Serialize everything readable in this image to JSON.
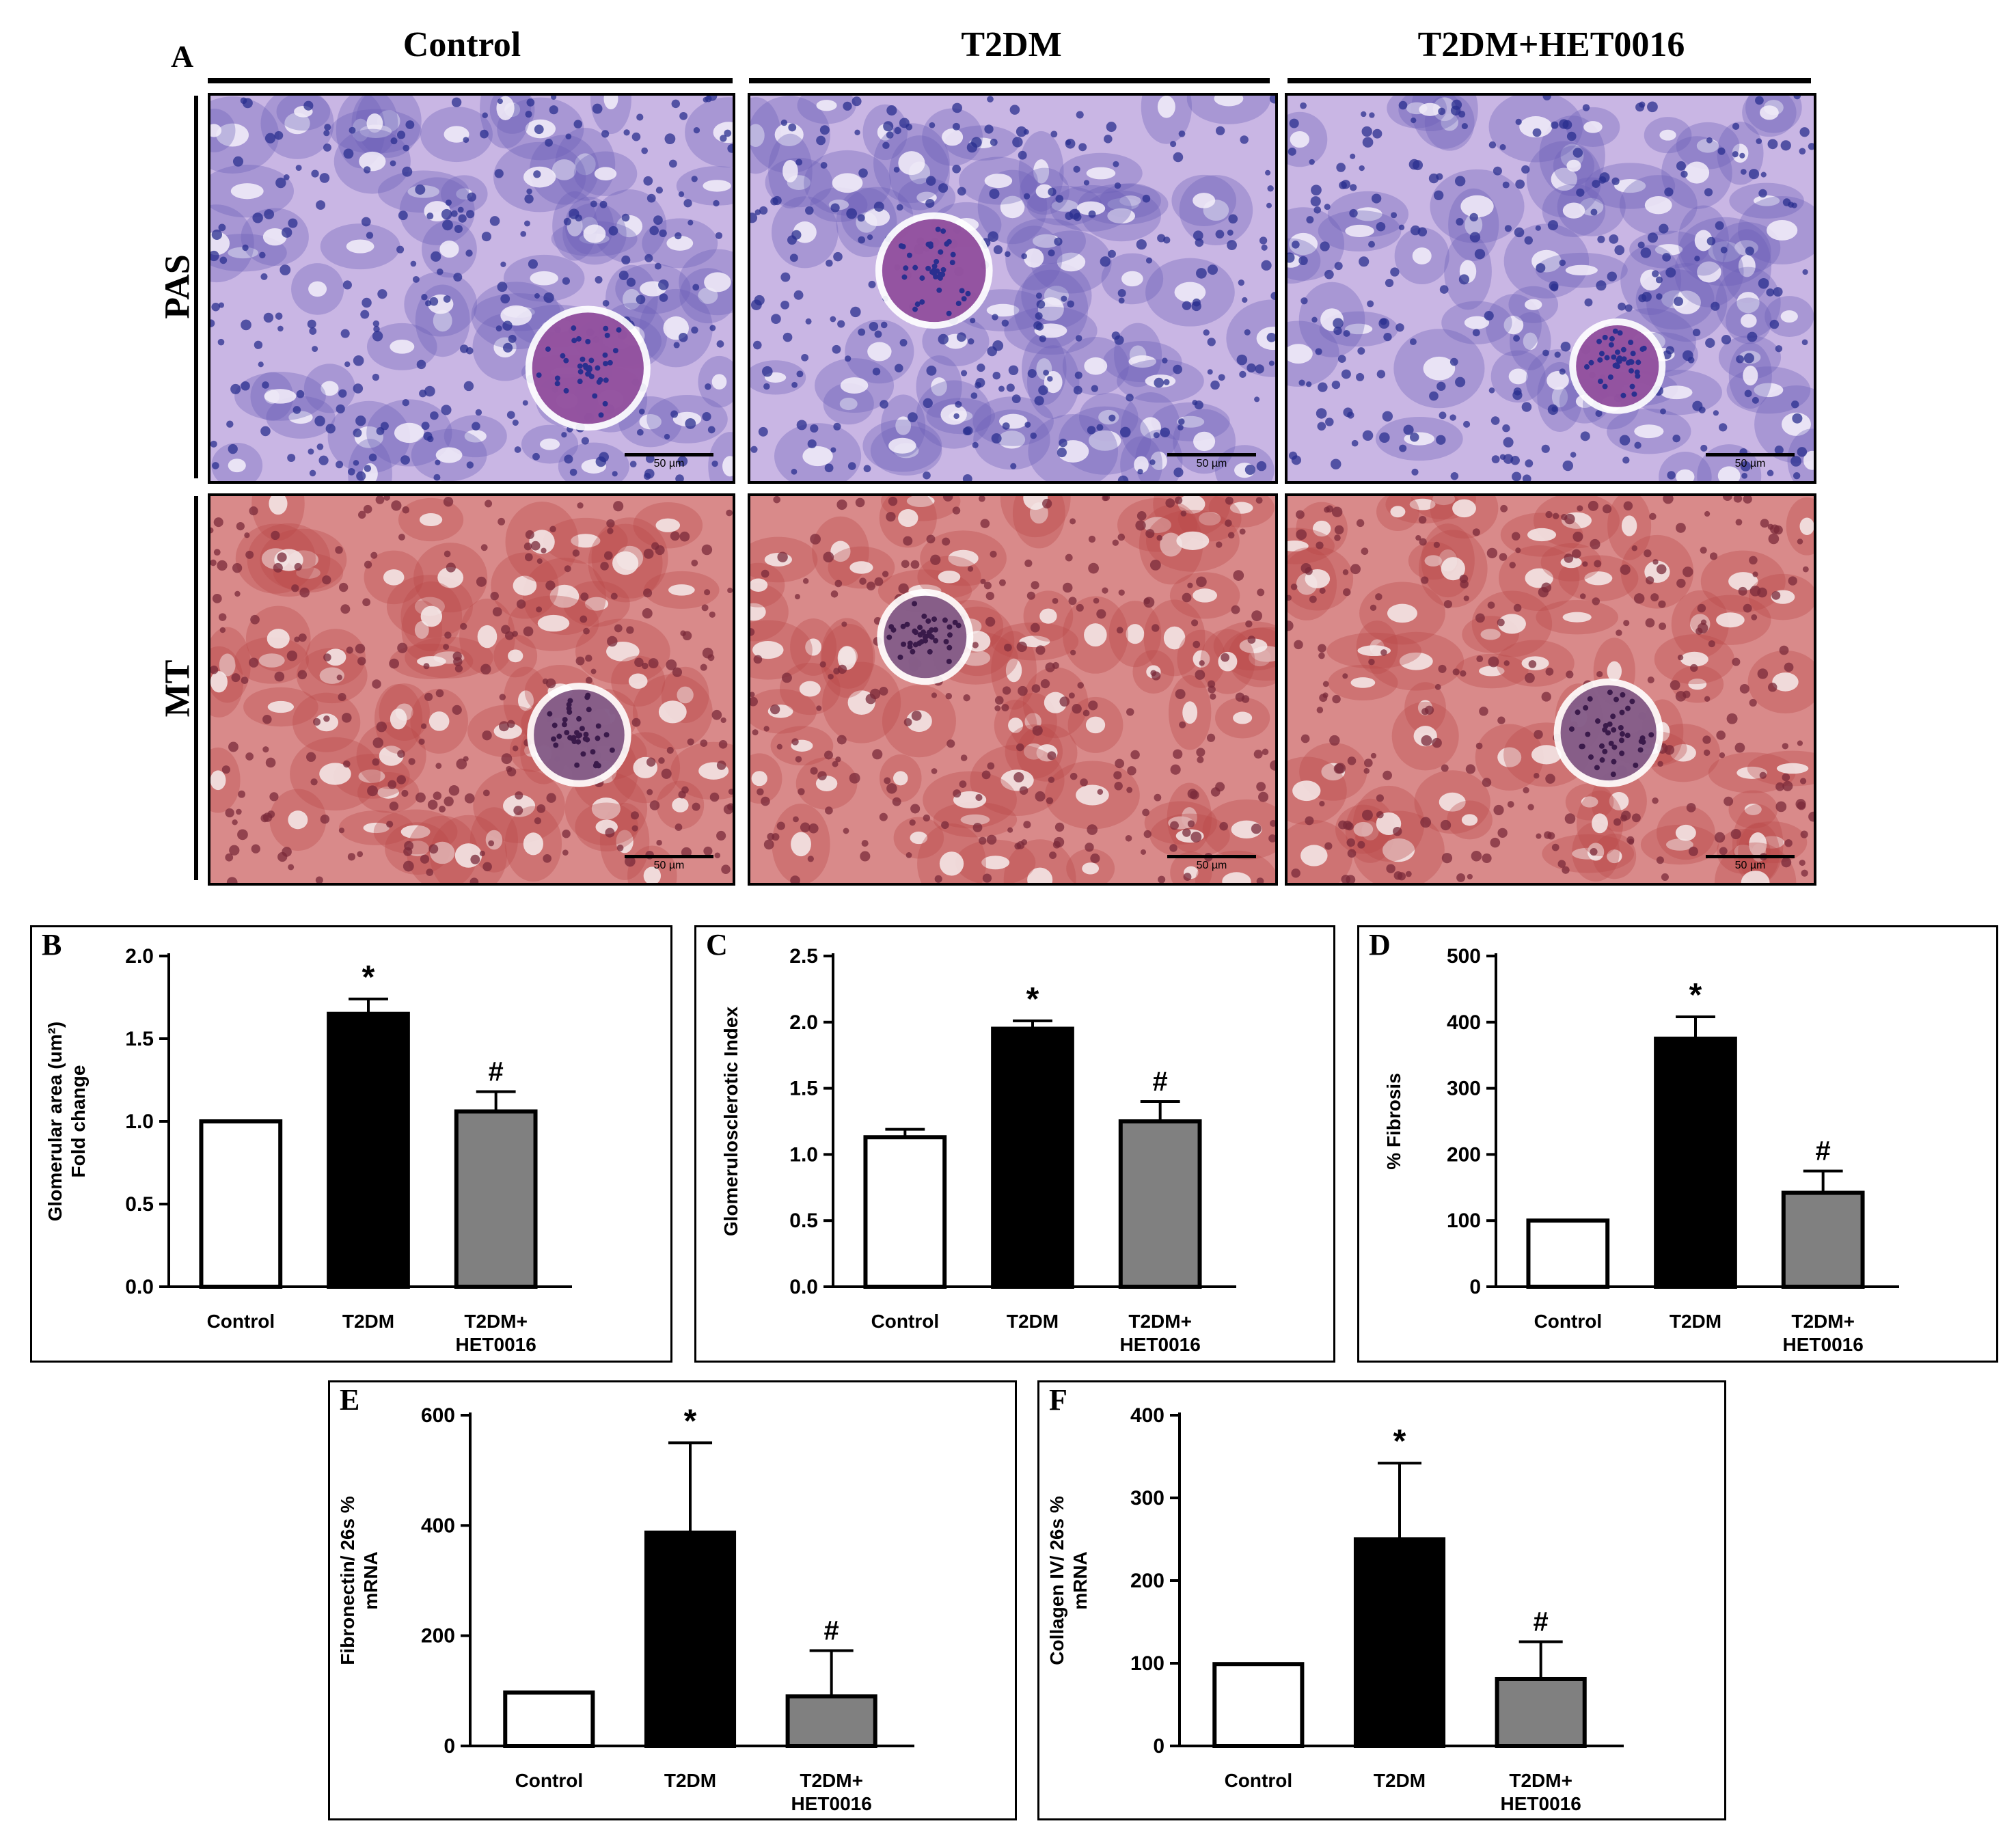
{
  "figure": {
    "panel_a_letter": "A",
    "columns": [
      "Control",
      "T2DM",
      "T2DM+HET0016"
    ],
    "rows": [
      "PAS",
      "MT"
    ],
    "scale_bar_label": "50 µm",
    "stain_colors": {
      "PAS_bg": "#c9b6e4",
      "PAS_cell": "#6a5fb8",
      "PAS_nuc": "#2a2f8f",
      "PAS_glom": "#7a2a8a",
      "MT_bg": "#d98a8a",
      "MT_cell": "#b94848",
      "MT_lumen": "#f6ecec",
      "MT_glom": "#6a3a6e"
    }
  },
  "chart_data": [
    {
      "letter": "B",
      "type": "bar",
      "ylabel": "Glomerular area (um²) Fold change",
      "ylabel_lines": [
        "Glomerular area (um²)",
        "Fold change"
      ],
      "categories": [
        [
          "Control"
        ],
        [
          "T2DM"
        ],
        [
          "T2DM+",
          "HET0016"
        ]
      ],
      "values": [
        1.0,
        1.65,
        1.06
      ],
      "errors": [
        0,
        0.09,
        0.12
      ],
      "annotations": [
        "",
        "*",
        "#"
      ],
      "colors": [
        "#ffffff",
        "#000000",
        "#808080"
      ],
      "ylim": [
        0,
        2.0
      ],
      "ticks": [
        "0.0",
        "0.5",
        "1.0",
        "1.5",
        "2.0"
      ]
    },
    {
      "letter": "C",
      "type": "bar",
      "ylabel": "Glomerulosclerotic Index",
      "ylabel_lines": [
        "Glomerulosclerotic Index"
      ],
      "categories": [
        [
          "Control"
        ],
        [
          "T2DM"
        ],
        [
          "T2DM+",
          "HET0016"
        ]
      ],
      "values": [
        1.13,
        1.95,
        1.25
      ],
      "errors": [
        0.06,
        0.06,
        0.15
      ],
      "annotations": [
        "",
        "*",
        "#"
      ],
      "colors": [
        "#ffffff",
        "#000000",
        "#808080"
      ],
      "ylim": [
        0,
        2.5
      ],
      "ticks": [
        "0.0",
        "0.5",
        "1.0",
        "1.5",
        "2.0",
        "2.5"
      ]
    },
    {
      "letter": "D",
      "type": "bar",
      "ylabel": "% Fibrosis",
      "ylabel_lines": [
        "% Fibrosis"
      ],
      "categories": [
        [
          "Control"
        ],
        [
          "T2DM"
        ],
        [
          "T2DM+",
          "HET0016"
        ]
      ],
      "values": [
        100,
        375,
        142
      ],
      "errors": [
        0,
        33,
        33
      ],
      "annotations": [
        "",
        "*",
        "#"
      ],
      "colors": [
        "#ffffff",
        "#000000",
        "#808080"
      ],
      "ylim": [
        0,
        500
      ],
      "ticks": [
        "0",
        "100",
        "200",
        "300",
        "400",
        "500"
      ]
    },
    {
      "letter": "E",
      "type": "bar",
      "ylabel": "Fibronectin/ 26s % mRNA",
      "ylabel_lines": [
        "Fibronectin/ 26s %",
        "mRNA"
      ],
      "categories": [
        [
          "Control"
        ],
        [
          "T2DM"
        ],
        [
          "T2DM+",
          "HET0016"
        ]
      ],
      "values": [
        97,
        387,
        90
      ],
      "errors": [
        0,
        163,
        83
      ],
      "annotations": [
        "",
        "*",
        "#"
      ],
      "colors": [
        "#ffffff",
        "#000000",
        "#808080"
      ],
      "ylim": [
        0,
        600
      ],
      "ticks": [
        "0",
        "200",
        "400",
        "600"
      ]
    },
    {
      "letter": "F",
      "type": "bar",
      "ylabel": "Collagen IV/ 26s % mRNA",
      "ylabel_lines": [
        "Collagen IV/ 26s %",
        "mRNA"
      ],
      "categories": [
        [
          "Control"
        ],
        [
          "T2DM"
        ],
        [
          "T2DM+",
          "HET0016"
        ]
      ],
      "values": [
        99,
        250,
        81
      ],
      "errors": [
        0,
        92,
        45
      ],
      "annotations": [
        "",
        "*",
        "#"
      ],
      "colors": [
        "#ffffff",
        "#000000",
        "#808080"
      ],
      "ylim": [
        0,
        400
      ],
      "ticks": [
        "0",
        "100",
        "200",
        "300",
        "400"
      ]
    }
  ]
}
